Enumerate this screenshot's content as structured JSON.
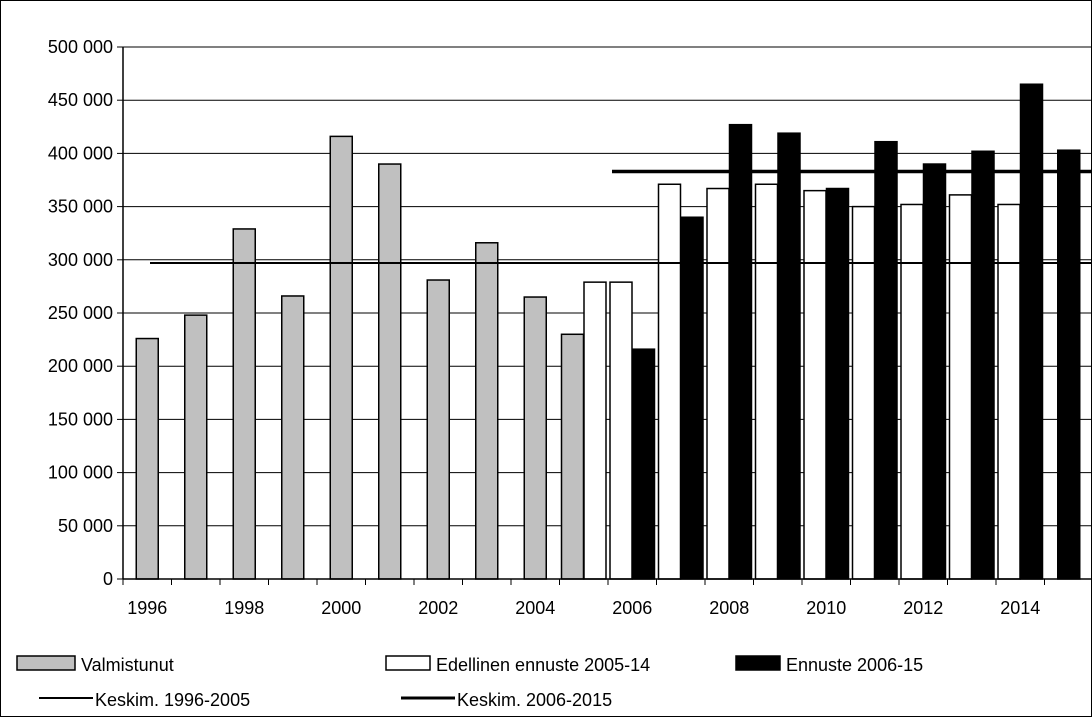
{
  "chart_data": {
    "type": "bar",
    "categories": [
      "1996",
      "1997",
      "1998",
      "1999",
      "2000",
      "2001",
      "2002",
      "2003",
      "2004",
      "2005",
      "2006",
      "2007",
      "2008",
      "2009",
      "2010",
      "2011",
      "2012",
      "2013",
      "2014",
      "2015"
    ],
    "x_tick_labels": [
      "1996",
      "1998",
      "2000",
      "2002",
      "2004",
      "2006",
      "2008",
      "2010",
      "2012",
      "2014"
    ],
    "y_tick_labels": [
      "0",
      "50 000",
      "100 000",
      "150 000",
      "200 000",
      "250 000",
      "300 000",
      "350 000",
      "400 000",
      "450 000",
      "500 000"
    ],
    "ylim": [
      0,
      500000
    ],
    "grid": "horizontal",
    "legend_placement": "bottom",
    "series": [
      {
        "name": "Valmistunut",
        "kind": "bar",
        "color": "#c0c0c0",
        "values": [
          226000,
          248000,
          329000,
          266000,
          416000,
          390000,
          281000,
          316000,
          265000,
          230000,
          null,
          null,
          null,
          null,
          null,
          null,
          null,
          null,
          null,
          null
        ]
      },
      {
        "name": "Edellinen ennuste 2005-14",
        "kind": "bar",
        "color": "#ffffff",
        "values": [
          null,
          null,
          null,
          null,
          null,
          null,
          null,
          null,
          null,
          279000,
          279000,
          371000,
          367000,
          371000,
          365000,
          350000,
          352000,
          361000,
          352000,
          null
        ]
      },
      {
        "name": "Ennuste 2006-15",
        "kind": "bar",
        "color": "#000000",
        "values": [
          null,
          null,
          null,
          null,
          null,
          null,
          null,
          null,
          null,
          null,
          216000,
          340000,
          427000,
          419000,
          367000,
          411000,
          390000,
          402000,
          465000,
          403000
        ]
      },
      {
        "name": "Keskim. 1996-2005",
        "kind": "line",
        "color": "#000000",
        "value": 297000,
        "from": "1996",
        "to": "2015"
      },
      {
        "name": "Keskim. 2006-2015",
        "kind": "line",
        "color": "#000000",
        "value": 383000,
        "from": "2006",
        "to": "2015"
      }
    ]
  },
  "legend": [
    {
      "label": "Valmistunut",
      "kind": "box",
      "color": "#c0c0c0"
    },
    {
      "label": "Edellinen ennuste 2005-14",
      "kind": "box",
      "color": "#ffffff"
    },
    {
      "label": "Ennuste 2006-15",
      "kind": "box",
      "color": "#000000"
    },
    {
      "label": "Keskim. 1996-2005",
      "kind": "thin-line",
      "color": "#000000"
    },
    {
      "label": "Keskim. 2006-2015",
      "kind": "thick-line",
      "color": "#000000"
    }
  ]
}
